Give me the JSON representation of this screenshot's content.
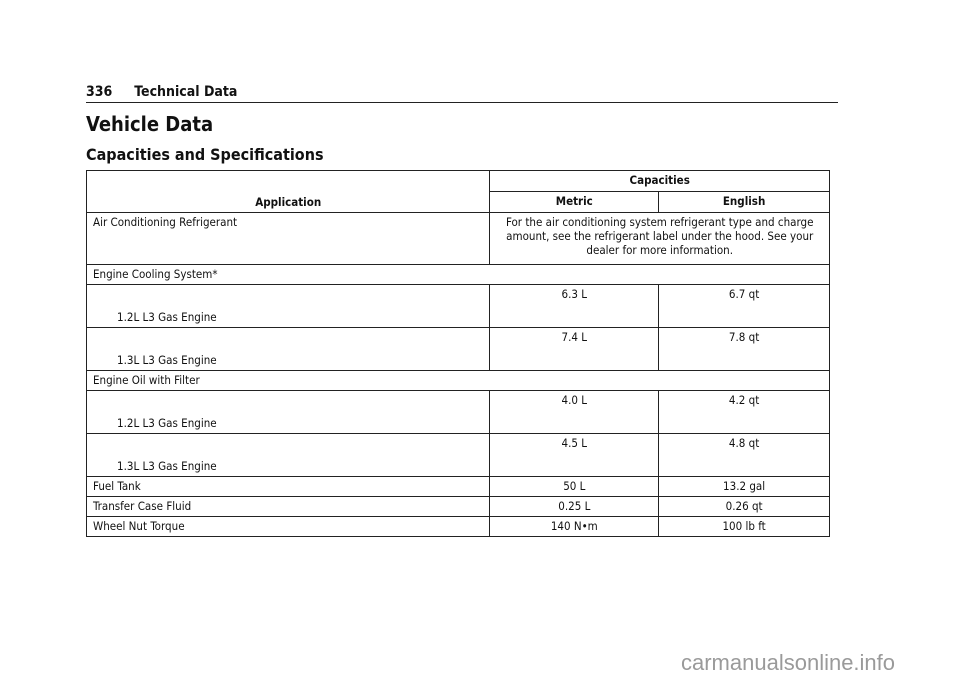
{
  "header": {
    "page_number": "336",
    "section": "Technical Data"
  },
  "title": "Vehicle Data",
  "subtitle": "Capacities and Specifications",
  "table": {
    "headers": {
      "application": "Application",
      "capacities": "Capacities",
      "metric": "Metric",
      "english": "English"
    },
    "ac": {
      "label": "Air Conditioning Refrigerant",
      "note": "For the air conditioning system refrigerant type and charge amount, see the refrigerant label under the hood. See your dealer for more information."
    },
    "cooling": {
      "label": "Engine Cooling System*",
      "rows": [
        {
          "engine": "1.2L L3 Gas Engine",
          "metric": "6.3 L",
          "english": "6.7 qt"
        },
        {
          "engine": "1.3L L3 Gas Engine",
          "metric": "7.4 L",
          "english": "7.8 qt"
        }
      ]
    },
    "oil": {
      "label": "Engine Oil with Filter",
      "rows": [
        {
          "engine": "1.2L L3 Gas Engine",
          "metric": "4.0 L",
          "english": "4.2 qt"
        },
        {
          "engine": "1.3L L3 Gas Engine",
          "metric": "4.5 L",
          "english": "4.8 qt"
        }
      ]
    },
    "rows": [
      {
        "label": "Fuel Tank",
        "metric": "50 L",
        "english": "13.2 gal"
      },
      {
        "label": "Transfer Case Fluid",
        "metric": "0.25 L",
        "english": "0.26 qt"
      },
      {
        "label": "Wheel Nut Torque",
        "metric": "140 N•m",
        "english": "100 lb ft"
      }
    ]
  },
  "watermark": "carmanualsonline.info"
}
